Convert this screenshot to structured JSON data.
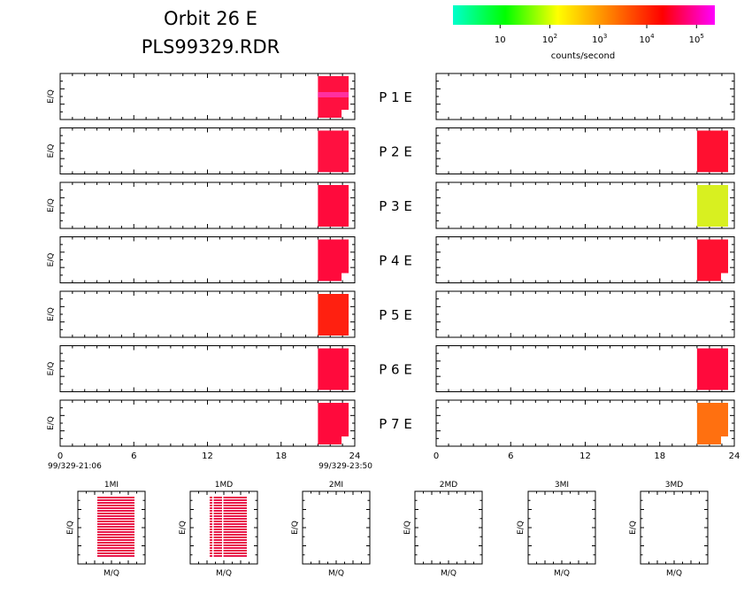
{
  "header": {
    "title_line1": "Orbit 26 E",
    "title_line2": "PLS99329.RDR"
  },
  "colorbar": {
    "stops": [
      "#00ffcc",
      "#00ff00",
      "#ffff00",
      "#ff8000",
      "#ff0000",
      "#ff00ff"
    ],
    "ticks": [
      {
        "base": "10",
        "exp": ""
      },
      {
        "base": "10",
        "exp": "2"
      },
      {
        "base": "10",
        "exp": "3"
      },
      {
        "base": "10",
        "exp": "4"
      },
      {
        "base": "10",
        "exp": "5"
      }
    ],
    "label": "counts/second"
  },
  "chart_data": [
    {
      "type": "heatmap",
      "name": "time-series",
      "x_ticks": [
        "0",
        "6",
        "12",
        "18",
        "24"
      ],
      "xlim": [
        0,
        24
      ],
      "ylabel": "E/Q",
      "left_time_start": "99/329-21:06",
      "left_time_end": "99/329-23:50",
      "rows": [
        {
          "label": "P  1  E",
          "left": {
            "x_start": 21.0,
            "x_end": 23.5,
            "color": "#ff1040",
            "band_color": "#ff30a0",
            "notch": true
          },
          "right": null
        },
        {
          "label": "P  2  E",
          "left": {
            "x_start": 21.0,
            "x_end": 23.5,
            "color": "#ff1040",
            "notch": false
          },
          "right": {
            "x_start": 21.0,
            "x_end": 23.5,
            "color": "#ff1030",
            "notch": false
          }
        },
        {
          "label": "P  3  E",
          "left": {
            "x_start": 21.0,
            "x_end": 23.5,
            "color": "#ff0a3c",
            "notch": false
          },
          "right": {
            "x_start": 21.0,
            "x_end": 23.5,
            "color": "#d8f020",
            "notch": false
          }
        },
        {
          "label": "P  4  E",
          "left": {
            "x_start": 21.0,
            "x_end": 23.5,
            "color": "#ff0a3c",
            "notch": true
          },
          "right": {
            "x_start": 21.0,
            "x_end": 23.5,
            "color": "#ff1030",
            "notch": true
          }
        },
        {
          "label": "P  5  E",
          "left": {
            "x_start": 21.0,
            "x_end": 23.5,
            "color": "#ff2010",
            "notch": false
          },
          "right": null
        },
        {
          "label": "P  6  E",
          "left": {
            "x_start": 21.0,
            "x_end": 23.5,
            "color": "#ff0a3c",
            "notch": false
          },
          "right": {
            "x_start": 21.0,
            "x_end": 23.5,
            "color": "#ff0a3c",
            "notch": false
          }
        },
        {
          "label": "P  7  E",
          "left": {
            "x_start": 21.0,
            "x_end": 23.5,
            "color": "#ff0a3c",
            "notch": true
          },
          "right": {
            "x_start": 21.0,
            "x_end": 23.5,
            "color": "#ff7010",
            "notch": true
          }
        }
      ]
    },
    {
      "type": "heatmap",
      "name": "mass-spectra",
      "xlabel": "M/Q",
      "ylabel": "E/Q",
      "panels": [
        {
          "title": "1MI",
          "has_data": true,
          "vertical_gaps": false
        },
        {
          "title": "1MD",
          "has_data": true,
          "vertical_gaps": true
        },
        {
          "title": "2MI",
          "has_data": false,
          "vertical_gaps": false
        },
        {
          "title": "2MD",
          "has_data": false,
          "vertical_gaps": false
        },
        {
          "title": "3MI",
          "has_data": false,
          "vertical_gaps": false
        },
        {
          "title": "3MD",
          "has_data": false,
          "vertical_gaps": false
        }
      ],
      "data_color": "#e8154a"
    }
  ]
}
